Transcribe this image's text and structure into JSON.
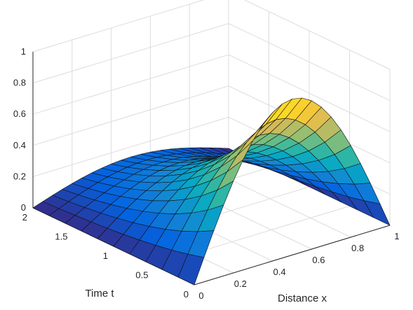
{
  "chart_data": {
    "type": "surface",
    "function": "z = sin(pi*x) * exp(-t)",
    "x": {
      "label": "Distance x",
      "lim": [
        0,
        1
      ],
      "ticks": [
        0,
        0.2,
        0.4,
        0.6,
        0.8,
        1
      ],
      "tick_labels": [
        "0",
        "0.2",
        "0.4",
        "0.6",
        "0.8",
        "1"
      ],
      "samples": [
        0,
        0.05,
        0.1,
        0.15,
        0.2,
        0.25,
        0.3,
        0.35,
        0.4,
        0.45,
        0.5,
        0.55,
        0.6,
        0.65,
        0.7,
        0.75,
        0.8,
        0.85,
        0.9,
        0.95,
        1
      ]
    },
    "t": {
      "label": "Time t",
      "lim": [
        0,
        2
      ],
      "ticks": [
        0,
        0.5,
        1,
        1.5,
        2
      ],
      "tick_labels": [
        "0",
        "0.5",
        "1",
        "1.5",
        "2"
      ],
      "samples": [
        0,
        0.2,
        0.4,
        0.6,
        0.8,
        1.0,
        1.2,
        1.4,
        1.6,
        1.8,
        2.0
      ]
    },
    "z": {
      "lim": [
        0,
        1
      ],
      "ticks": [
        0,
        0.2,
        0.4,
        0.6,
        0.8,
        1
      ],
      "tick_labels": [
        "0",
        "0.2",
        "0.4",
        "0.6",
        "0.8",
        "1"
      ]
    },
    "grid": true,
    "colormap": "parula",
    "colormap_stops": [
      "#352a87",
      "#0363e1",
      "#1485d4",
      "#06a7c6",
      "#38b99e",
      "#92bf73",
      "#d9ba56",
      "#fcce2e",
      "#f9fb0e"
    ]
  }
}
